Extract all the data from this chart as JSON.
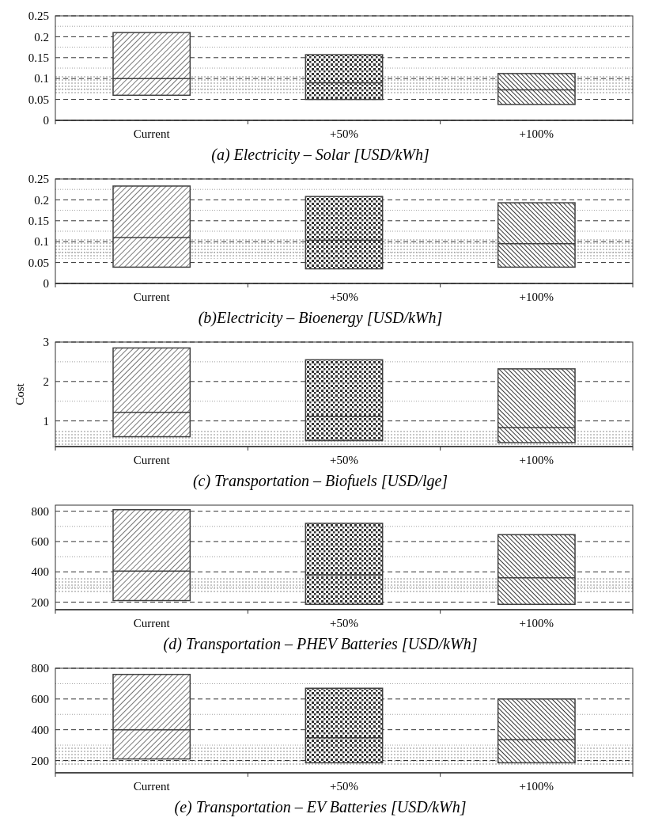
{
  "chart_data": [
    {
      "type": "box",
      "title": "(a) Electricity – Solar [USD/kWh]",
      "categories": [
        "Current",
        "+50%",
        "+100%"
      ],
      "ylim": [
        0,
        0.25
      ],
      "yticks": [
        0,
        0.05,
        {
          "value": 0.075,
          "label": null
        },
        0.1,
        {
          "value": 0.125,
          "label": null
        },
        0.15,
        {
          "value": 0.175,
          "label": null
        },
        0.2,
        {
          "value": 0.225,
          "label": null
        },
        0.25
      ],
      "grid": "y",
      "bands": [
        {
          "axis": "y",
          "from": 0.062,
          "to": 0.107,
          "color": "#808080"
        }
      ],
      "series": [
        {
          "color": "#404040",
          "boxes": [
            {
              "low": 0.06,
              "q1": 0.06,
              "median": 0.1,
              "q3": 0.21,
              "high": 0.21
            },
            {
              "low": 0.05,
              "q1": 0.05,
              "median": 0.09,
              "q3": 0.157,
              "high": 0.157
            },
            {
              "low": 0.038,
              "q1": 0.038,
              "median": 0.073,
              "q3": 0.112,
              "high": 0.112
            }
          ]
        }
      ]
    },
    {
      "type": "box",
      "title": "(b)Electricity – Bioenergy [USD/kWh]",
      "categories": [
        "Current",
        "+50%",
        "+100%"
      ],
      "ylim": [
        0,
        0.25
      ],
      "yticks": [
        0,
        0.05,
        {
          "value": 0.075,
          "label": null
        },
        0.1,
        {
          "value": 0.125,
          "label": null
        },
        0.15,
        {
          "value": 0.175,
          "label": null
        },
        0.2,
        {
          "value": 0.225,
          "label": null
        },
        0.25
      ],
      "grid": "y",
      "bands": [
        {
          "axis": "y",
          "from": 0.059,
          "to": 0.109,
          "color": "#808080"
        }
      ],
      "series": [
        {
          "color": "#404040",
          "boxes": [
            {
              "low": 0.039,
              "q1": 0.039,
              "median": 0.11,
              "q3": 0.233,
              "high": 0.233
            },
            {
              "low": 0.035,
              "q1": 0.035,
              "median": 0.103,
              "q3": 0.208,
              "high": 0.208
            },
            {
              "low": 0.039,
              "q1": 0.039,
              "median": 0.095,
              "q3": 0.193,
              "high": 0.193
            }
          ]
        }
      ]
    },
    {
      "type": "box",
      "title": "(c) Transportation – Biofuels [USD/lge]",
      "ylabel": "Cost",
      "categories": [
        "Current",
        "+50%",
        "+100%"
      ],
      "ylim": [
        0.35,
        3
      ],
      "yticks": [
        1,
        {
          "value": 1.5,
          "label": null
        },
        2,
        {
          "value": 2.5,
          "label": null
        },
        3
      ],
      "grid": "y",
      "bands": [
        {
          "axis": "y",
          "from": 0.35,
          "to": 0.76,
          "color": "#808080"
        }
      ],
      "series": [
        {
          "color": "#404040",
          "boxes": [
            {
              "low": 0.6,
              "q1": 0.6,
              "median": 1.22,
              "q3": 2.85,
              "high": 2.85
            },
            {
              "low": 0.5,
              "q1": 0.5,
              "median": 1.12,
              "q3": 2.55,
              "high": 2.55
            },
            {
              "low": 0.45,
              "q1": 0.45,
              "median": 0.83,
              "q3": 2.32,
              "high": 2.32
            }
          ]
        }
      ]
    },
    {
      "type": "box",
      "title": "(d) Transportation – PHEV Batteries [USD/kWh]",
      "categories": [
        "Current",
        "+50%",
        "+100%"
      ],
      "ylim": [
        150,
        840
      ],
      "yticks": [
        200,
        {
          "value": 300,
          "label": null
        },
        400,
        {
          "value": 500,
          "label": null
        },
        600,
        {
          "value": 700,
          "label": null
        },
        800
      ],
      "grid": "y",
      "bands": [
        {
          "axis": "y",
          "from": 260,
          "to": 360,
          "color": "#808080"
        }
      ],
      "series": [
        {
          "color": "#404040",
          "boxes": [
            {
              "low": 210,
              "q1": 210,
              "median": 405,
              "q3": 810,
              "high": 810
            },
            {
              "low": 185,
              "q1": 185,
              "median": 380,
              "q3": 720,
              "high": 720
            },
            {
              "low": 185,
              "q1": 185,
              "median": 360,
              "q3": 645,
              "high": 645
            }
          ]
        }
      ]
    },
    {
      "type": "box",
      "title": "(e) Transportation – EV Batteries [USD/kWh]",
      "categories": [
        "Current",
        "+50%",
        "+100%"
      ],
      "ylim": [
        120,
        800
      ],
      "yticks": [
        200,
        {
          "value": 300,
          "label": null
        },
        400,
        {
          "value": 500,
          "label": null
        },
        600,
        {
          "value": 700,
          "label": null
        },
        800
      ],
      "grid": "y",
      "bands": [
        {
          "axis": "y",
          "from": 165,
          "to": 285,
          "color": "#808080"
        }
      ],
      "series": [
        {
          "color": "#404040",
          "boxes": [
            {
              "low": 210,
              "q1": 210,
              "median": 400,
              "q3": 760,
              "high": 760
            },
            {
              "low": 185,
              "q1": 185,
              "median": 348,
              "q3": 670,
              "high": 670
            },
            {
              "low": 185,
              "q1": 185,
              "median": 335,
              "q3": 600,
              "high": 600
            }
          ]
        }
      ]
    }
  ]
}
